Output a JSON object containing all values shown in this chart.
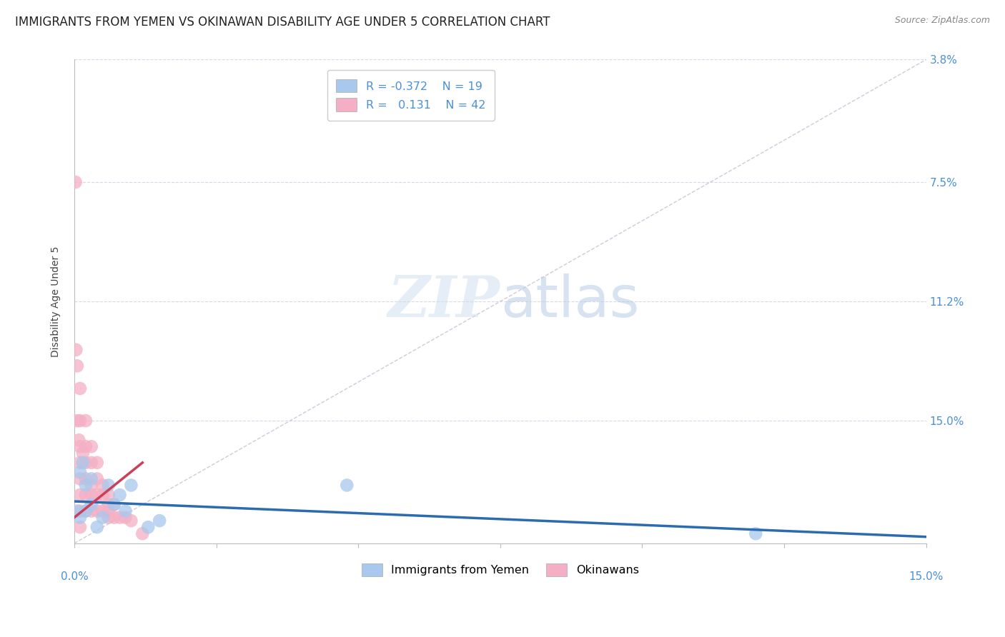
{
  "title": "IMMIGRANTS FROM YEMEN VS OKINAWAN DISABILITY AGE UNDER 5 CORRELATION CHART",
  "source": "Source: ZipAtlas.com",
  "ylabel": "Disability Age Under 5",
  "xlim": [
    0.0,
    0.15
  ],
  "ylim": [
    0.0,
    0.15
  ],
  "yticks": [
    0.038,
    0.075,
    0.112,
    0.15
  ],
  "xtick_positions": [
    0.0,
    0.025,
    0.05,
    0.075,
    0.1,
    0.125,
    0.15
  ],
  "legend_r_blue": "-0.372",
  "legend_n_blue": "19",
  "legend_r_pink": "0.131",
  "legend_n_pink": "42",
  "blue_color": "#a8c8ed",
  "pink_color": "#f4afc4",
  "trend_blue_color": "#2b6cb0",
  "trend_pink_color": "#c8405a",
  "diagonal_color": "#ccccdd",
  "grid_color": "#d8d8e8",
  "tick_label_color": "#4a90d9",
  "blue_scatter_x": [
    0.0005,
    0.001,
    0.001,
    0.0015,
    0.002,
    0.002,
    0.003,
    0.003,
    0.004,
    0.005,
    0.006,
    0.007,
    0.008,
    0.009,
    0.01,
    0.013,
    0.015,
    0.048,
    0.12
  ],
  "blue_scatter_y": [
    0.01,
    0.008,
    0.022,
    0.025,
    0.018,
    0.01,
    0.012,
    0.02,
    0.005,
    0.008,
    0.018,
    0.012,
    0.015,
    0.01,
    0.018,
    0.005,
    0.007,
    0.018,
    0.003
  ],
  "pink_scatter_x": [
    0.0002,
    0.0003,
    0.0005,
    0.0005,
    0.0008,
    0.001,
    0.001,
    0.001,
    0.001,
    0.001,
    0.001,
    0.001,
    0.001,
    0.0015,
    0.002,
    0.002,
    0.002,
    0.002,
    0.002,
    0.002,
    0.003,
    0.003,
    0.003,
    0.003,
    0.003,
    0.004,
    0.004,
    0.004,
    0.004,
    0.005,
    0.005,
    0.005,
    0.006,
    0.006,
    0.006,
    0.006,
    0.007,
    0.007,
    0.008,
    0.009,
    0.01,
    0.012
  ],
  "pink_scatter_y": [
    0.112,
    0.06,
    0.055,
    0.038,
    0.032,
    0.048,
    0.038,
    0.03,
    0.025,
    0.02,
    0.015,
    0.01,
    0.005,
    0.028,
    0.038,
    0.03,
    0.025,
    0.02,
    0.015,
    0.01,
    0.03,
    0.025,
    0.018,
    0.015,
    0.01,
    0.025,
    0.02,
    0.015,
    0.01,
    0.018,
    0.015,
    0.01,
    0.015,
    0.012,
    0.01,
    0.008,
    0.012,
    0.008,
    0.008,
    0.008,
    0.007,
    0.003
  ],
  "blue_trend_x": [
    0.0,
    0.15
  ],
  "blue_trend_y": [
    0.013,
    0.002
  ],
  "pink_trend_x": [
    0.0,
    0.012
  ],
  "pink_trend_y": [
    0.008,
    0.025
  ],
  "watermark_zip": "ZIP",
  "watermark_atlas": "atlas",
  "background_color": "#ffffff",
  "title_fontsize": 12,
  "label_fontsize": 10,
  "tick_fontsize": 11,
  "source_fontsize": 9
}
